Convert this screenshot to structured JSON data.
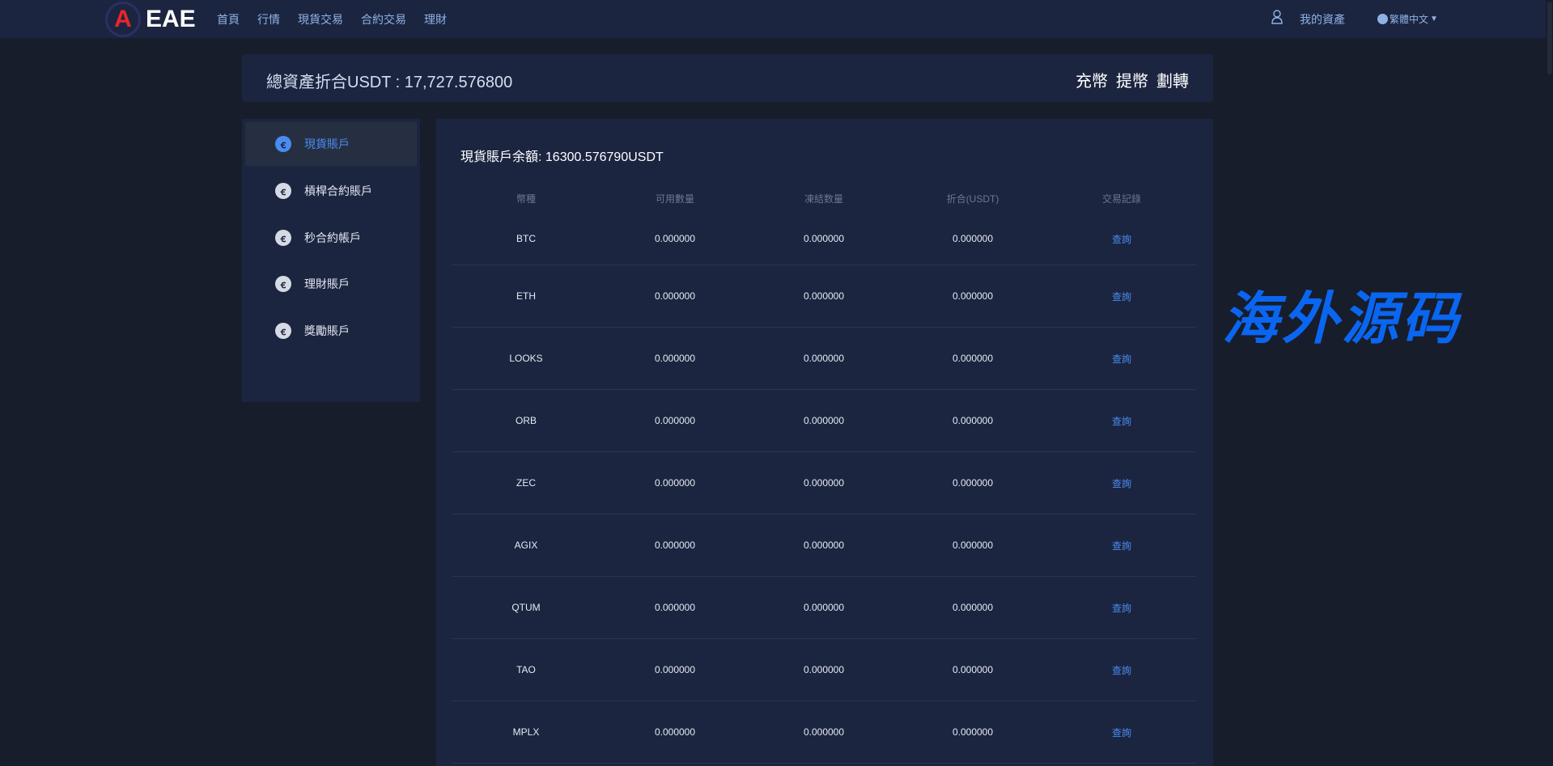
{
  "nav": {
    "logo_text": "EAE",
    "logo_letter": "A",
    "links": [
      "首頁",
      "行情",
      "現貨交易",
      "合約交易",
      "理財"
    ],
    "my_assets": "我的資產",
    "language": "繁體中文"
  },
  "summary": {
    "total_label": "總資產折合USDT : 17,727.576800",
    "deposit": "充幣",
    "withdraw": "提幣",
    "transfer": "劃轉"
  },
  "sidebar": {
    "items": [
      {
        "label": "現貨賬戶",
        "active": true
      },
      {
        "label": "槓桿合約賬戶"
      },
      {
        "label": "秒合約帳戶"
      },
      {
        "label": "理財賬戶"
      },
      {
        "label": "獎勵賬戶"
      }
    ]
  },
  "main": {
    "balance": "現貨賬戶余額:   16300.576790USDT",
    "columns": [
      "幣種",
      "可用數量",
      "凍結数量",
      "折合(USDT)",
      "交易記錄"
    ],
    "rows": [
      {
        "coin": "BTC",
        "available": "0.000000",
        "frozen": "0.000000",
        "usdt": "0.000000",
        "action": "查詢"
      },
      {
        "coin": "ETH",
        "available": "0.000000",
        "frozen": "0.000000",
        "usdt": "0.000000",
        "action": "查詢"
      },
      {
        "coin": "LOOKS",
        "available": "0.000000",
        "frozen": "0.000000",
        "usdt": "0.000000",
        "action": "查詢"
      },
      {
        "coin": "ORB",
        "available": "0.000000",
        "frozen": "0.000000",
        "usdt": "0.000000",
        "action": "查詢"
      },
      {
        "coin": "ZEC",
        "available": "0.000000",
        "frozen": "0.000000",
        "usdt": "0.000000",
        "action": "查詢"
      },
      {
        "coin": "AGIX",
        "available": "0.000000",
        "frozen": "0.000000",
        "usdt": "0.000000",
        "action": "查詢"
      },
      {
        "coin": "QTUM",
        "available": "0.000000",
        "frozen": "0.000000",
        "usdt": "0.000000",
        "action": "查詢"
      },
      {
        "coin": "TAO",
        "available": "0.000000",
        "frozen": "0.000000",
        "usdt": "0.000000",
        "action": "查詢"
      },
      {
        "coin": "MPLX",
        "available": "0.000000",
        "frozen": "0.000000",
        "usdt": "0.000000",
        "action": "查詢"
      }
    ]
  },
  "watermark": "海外源码",
  "colors": {
    "accent": "#4a8bf0",
    "nav_bg": "#1b2540",
    "page_bg": "#171d2b",
    "logo_red": "#e8242f",
    "watermark": "#0a66f0"
  }
}
